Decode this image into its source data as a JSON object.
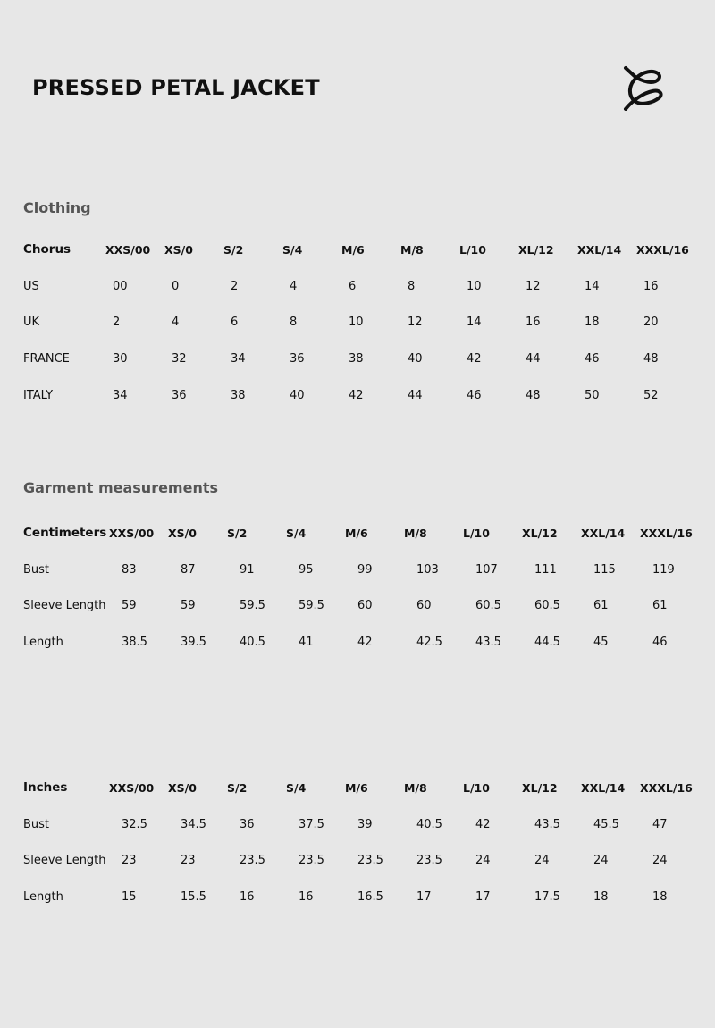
{
  "title": "PRESSED PETAL JACKET",
  "logo": "chorus-loop-c-logo",
  "clothing": {
    "section_title": "Clothing",
    "header_label": "Chorus",
    "sizes": [
      "XXS/00",
      "XS/0",
      "S/2",
      "S/4",
      "M/6",
      "M/8",
      "L/10",
      "XL/12",
      "XXL/14",
      "XXXL/16"
    ],
    "rows": [
      {
        "label": "US",
        "values": [
          "00",
          "0",
          "2",
          "4",
          "6",
          "8",
          "10",
          "12",
          "14",
          "16"
        ]
      },
      {
        "label": "UK",
        "values": [
          "2",
          "4",
          "6",
          "8",
          "10",
          "12",
          "14",
          "16",
          "18",
          "20"
        ]
      },
      {
        "label": "FRANCE",
        "values": [
          "30",
          "32",
          "34",
          "36",
          "38",
          "40",
          "42",
          "44",
          "46",
          "48"
        ]
      },
      {
        "label": "ITALY",
        "values": [
          "34",
          "36",
          "38",
          "40",
          "42",
          "44",
          "46",
          "48",
          "50",
          "52"
        ]
      }
    ]
  },
  "garment_cm": {
    "section_title": "Garment measurements",
    "header_label": "Centimeters",
    "sizes": [
      "XXS/00",
      "XS/0",
      "S/2",
      "S/4",
      "M/6",
      "M/8",
      "L/10",
      "XL/12",
      "XXL/14",
      "XXXL/16"
    ],
    "rows": [
      {
        "label": "Bust",
        "values": [
          "83",
          "87",
          "91",
          "95",
          "99",
          "103",
          "107",
          "111",
          "115",
          "119"
        ]
      },
      {
        "label": "Sleeve Length",
        "values": [
          "59",
          "59",
          "59.5",
          "59.5",
          "60",
          "60",
          "60.5",
          "60.5",
          "61",
          "61"
        ]
      },
      {
        "label": "Length",
        "values": [
          "38.5",
          "39.5",
          "40.5",
          "41",
          "42",
          "42.5",
          "43.5",
          "44.5",
          "45",
          "46"
        ]
      }
    ]
  },
  "garment_in": {
    "header_label": "Inches",
    "sizes": [
      "XXS/00",
      "XS/0",
      "S/2",
      "S/4",
      "M/6",
      "M/8",
      "L/10",
      "XL/12",
      "XXL/14",
      "XXXL/16"
    ],
    "rows": [
      {
        "label": "Bust",
        "values": [
          "32.5",
          "34.5",
          "36",
          "37.5",
          "39",
          "40.5",
          "42",
          "43.5",
          "45.5",
          "47"
        ]
      },
      {
        "label": "Sleeve Length",
        "values": [
          "23",
          "23",
          "23.5",
          "23.5",
          "23.5",
          "23.5",
          "24",
          "24",
          "24",
          "24"
        ]
      },
      {
        "label": "Length",
        "values": [
          "15",
          "15.5",
          "16",
          "16",
          "16.5",
          "17",
          "17",
          "17.5",
          "18",
          "18"
        ]
      }
    ]
  }
}
